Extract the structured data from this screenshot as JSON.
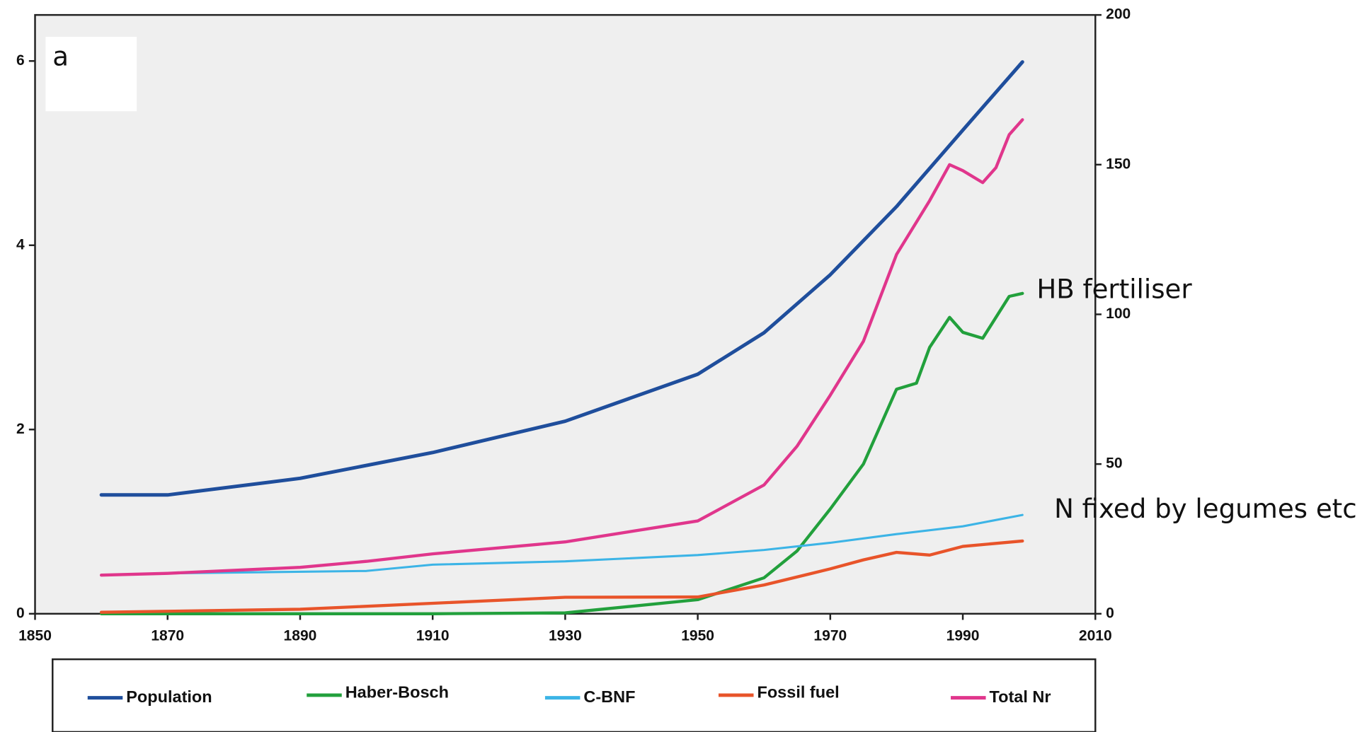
{
  "chart_data": {
    "type": "line",
    "annotations": [
      "a",
      "HB fertiliser",
      "N fixed by legumes etc"
    ],
    "xlim": [
      1850,
      2010
    ],
    "xticks": [
      1850,
      1870,
      1890,
      1910,
      1930,
      1950,
      1970,
      1990,
      2010
    ],
    "ylim": [
      0,
      6.5
    ],
    "yticks": [
      0,
      2,
      4,
      6
    ],
    "y2lim": [
      0,
      200
    ],
    "y2ticks": [
      0,
      50,
      100,
      150,
      200
    ],
    "grid": false,
    "legend": "bottom",
    "series": [
      {
        "name": "Population",
        "color": "#1f4e9c",
        "axis": "y",
        "x": [
          1860,
          1870,
          1890,
          1910,
          1930,
          1950,
          1960,
          1970,
          1980,
          1990,
          1999
        ],
        "values": [
          1.29,
          1.29,
          1.47,
          1.75,
          2.09,
          2.6,
          3.05,
          3.68,
          4.42,
          5.25,
          5.99
        ]
      },
      {
        "name": "Haber-Bosch",
        "color": "#22a03c",
        "axis": "y2",
        "x": [
          1860,
          1910,
          1930,
          1950,
          1960,
          1965,
          1970,
          1975,
          1980,
          1983,
          1985,
          1988,
          1990,
          1993,
          1995,
          1997,
          1999
        ],
        "values": [
          0,
          0,
          0.3,
          4.7,
          12,
          21,
          35,
          50,
          75,
          77,
          89,
          99,
          94,
          92,
          99,
          106,
          107
        ]
      },
      {
        "name": "C-BNF",
        "color": "#3cb4e6",
        "axis": "y2",
        "x": [
          1860,
          1870,
          1900,
          1910,
          1930,
          1950,
          1960,
          1970,
          1980,
          1990,
          1999
        ],
        "values": [
          12.9,
          13.5,
          14.3,
          16.4,
          17.5,
          19.6,
          21.3,
          23.7,
          26.6,
          29.2,
          33
        ]
      },
      {
        "name": "Fossil fuel",
        "color": "#e8542a",
        "axis": "y2",
        "x": [
          1860,
          1890,
          1910,
          1930,
          1950,
          1960,
          1970,
          1975,
          1980,
          1985,
          1990,
          1999
        ],
        "values": [
          0.5,
          1.5,
          3.5,
          5.5,
          5.6,
          9.6,
          15,
          18,
          20.5,
          19.6,
          22.5,
          24.3
        ]
      },
      {
        "name": "Total Nr",
        "color": "#e0368c",
        "axis": "y2",
        "x": [
          1860,
          1870,
          1890,
          1900,
          1910,
          1930,
          1950,
          1960,
          1965,
          1970,
          1975,
          1980,
          1985,
          1988,
          1990,
          1993,
          1995,
          1997,
          1999
        ],
        "values": [
          12.9,
          13.5,
          15.5,
          17.5,
          20,
          24,
          31,
          43,
          56,
          73,
          91,
          120,
          138,
          150,
          148,
          144,
          149,
          160,
          165
        ]
      }
    ]
  }
}
